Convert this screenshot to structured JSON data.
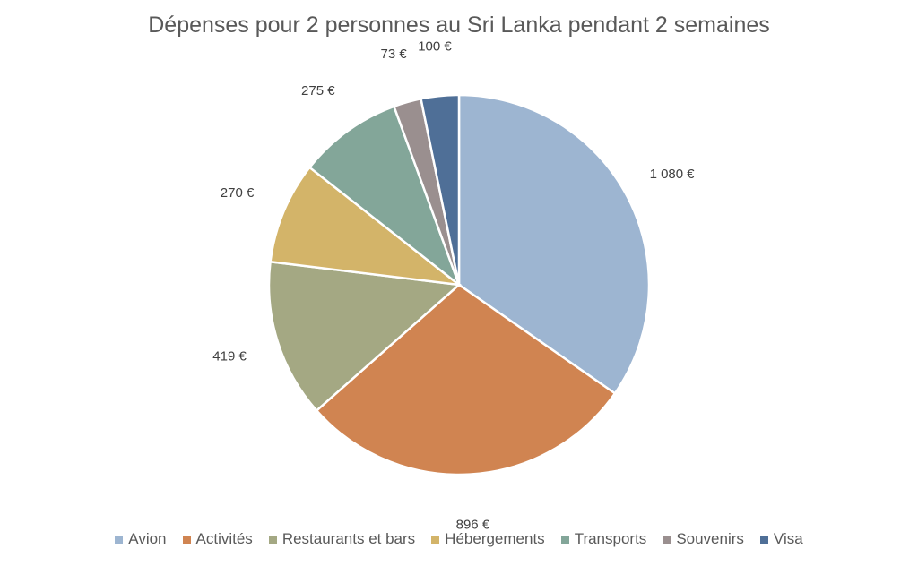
{
  "chart_data": {
    "type": "pie",
    "title": "Dépenses pour 2 personnes au Sri Lanka pendant 2 semaines",
    "categories": [
      "Avion",
      "Activités",
      "Restaurants et bars",
      "Hébergements",
      "Transports",
      "Souvenirs",
      "Visa"
    ],
    "values": [
      1080,
      896,
      419,
      270,
      275,
      73,
      100
    ],
    "data_labels": [
      "1 080 €",
      "896 €",
      "419 €",
      "270 €",
      "275 €",
      "73 €",
      "100 €"
    ],
    "colors": [
      "#9db5d1",
      "#d08451",
      "#a4a883",
      "#d3b469",
      "#83a699",
      "#9a8f8f",
      "#4f6f97"
    ],
    "legend_position": "bottom",
    "start_angle": "12 o'clock, clockwise"
  }
}
